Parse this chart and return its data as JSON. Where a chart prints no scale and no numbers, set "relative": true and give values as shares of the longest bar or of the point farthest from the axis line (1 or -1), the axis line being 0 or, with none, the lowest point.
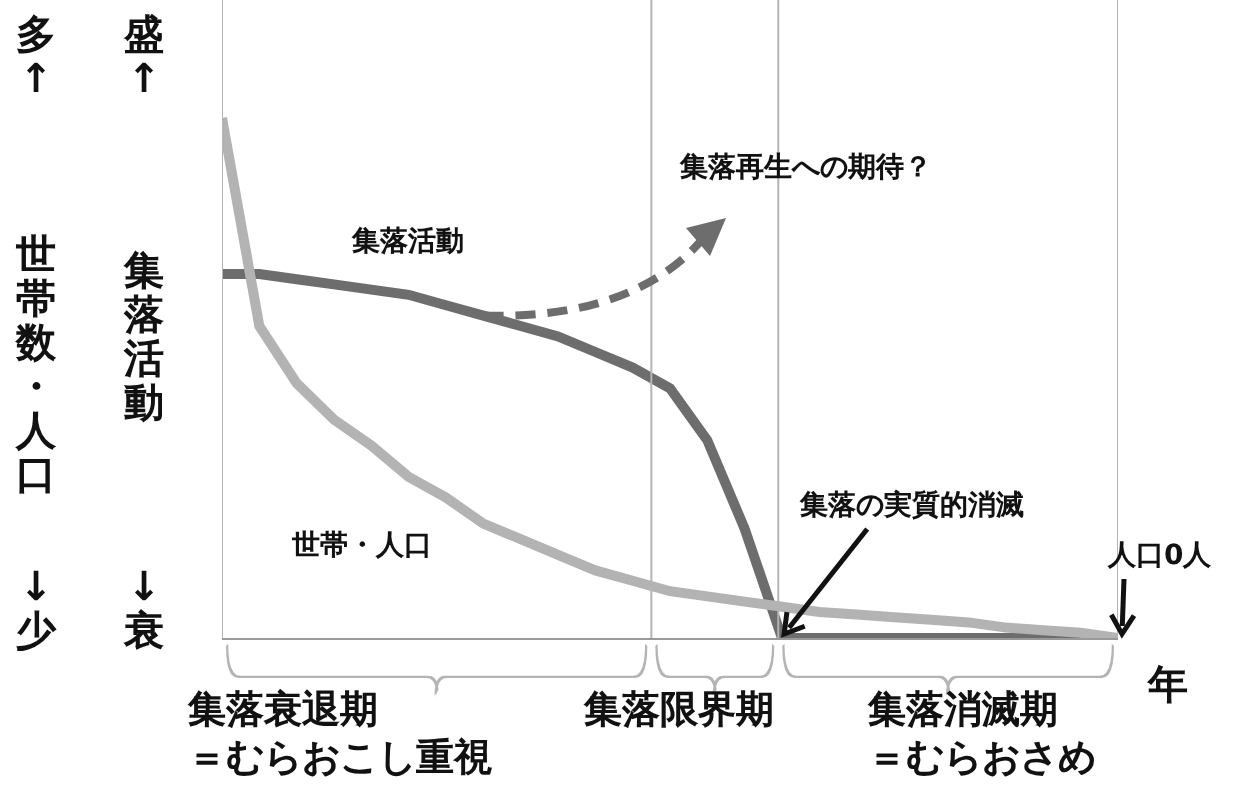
{
  "chart_data": {
    "type": "line",
    "relative": true,
    "xlabel": "年",
    "ylabel": "集落活動",
    "categories": [
      null,
      null,
      null,
      null,
      null,
      null,
      null,
      null,
      null,
      null,
      null,
      null,
      null,
      null,
      null,
      null,
      null,
      null,
      null,
      null,
      null,
      null,
      null,
      null,
      null
    ],
    "series": [
      {
        "name": "集落活動",
        "color": "#6d6d6d",
        "values": [
          0.7,
          0.7,
          0.69,
          0.68,
          0.67,
          0.66,
          0.64,
          0.62,
          0.6,
          0.58,
          0.55,
          0.52,
          0.48,
          0.38,
          0.21,
          0,
          0,
          0,
          0,
          0,
          0,
          0,
          0,
          0,
          0
        ]
      },
      {
        "name": "世帯・人口",
        "color": "#b3b3b3",
        "values": [
          1.0,
          0.6,
          0.49,
          0.42,
          0.37,
          0.31,
          0.27,
          0.22,
          0.19,
          0.16,
          0.13,
          0.11,
          0.09,
          0.08,
          0.07,
          0.06,
          0.05,
          0.045,
          0.04,
          0.035,
          0.03,
          0.02,
          0.015,
          0.01,
          0
        ]
      }
    ],
    "annotations": [
      "多↑",
      "↓少",
      "盛↑",
      "↓衰",
      "世帯数・人口",
      "集落再生への期待？",
      "集落の実質的消滅",
      "人口0人",
      "集落衰退期",
      "＝むらおこし重視",
      "集落限界期",
      "集落消滅期",
      "＝むらおさめ"
    ],
    "legend": false,
    "marker": "none",
    "line_style": "solid"
  }
}
